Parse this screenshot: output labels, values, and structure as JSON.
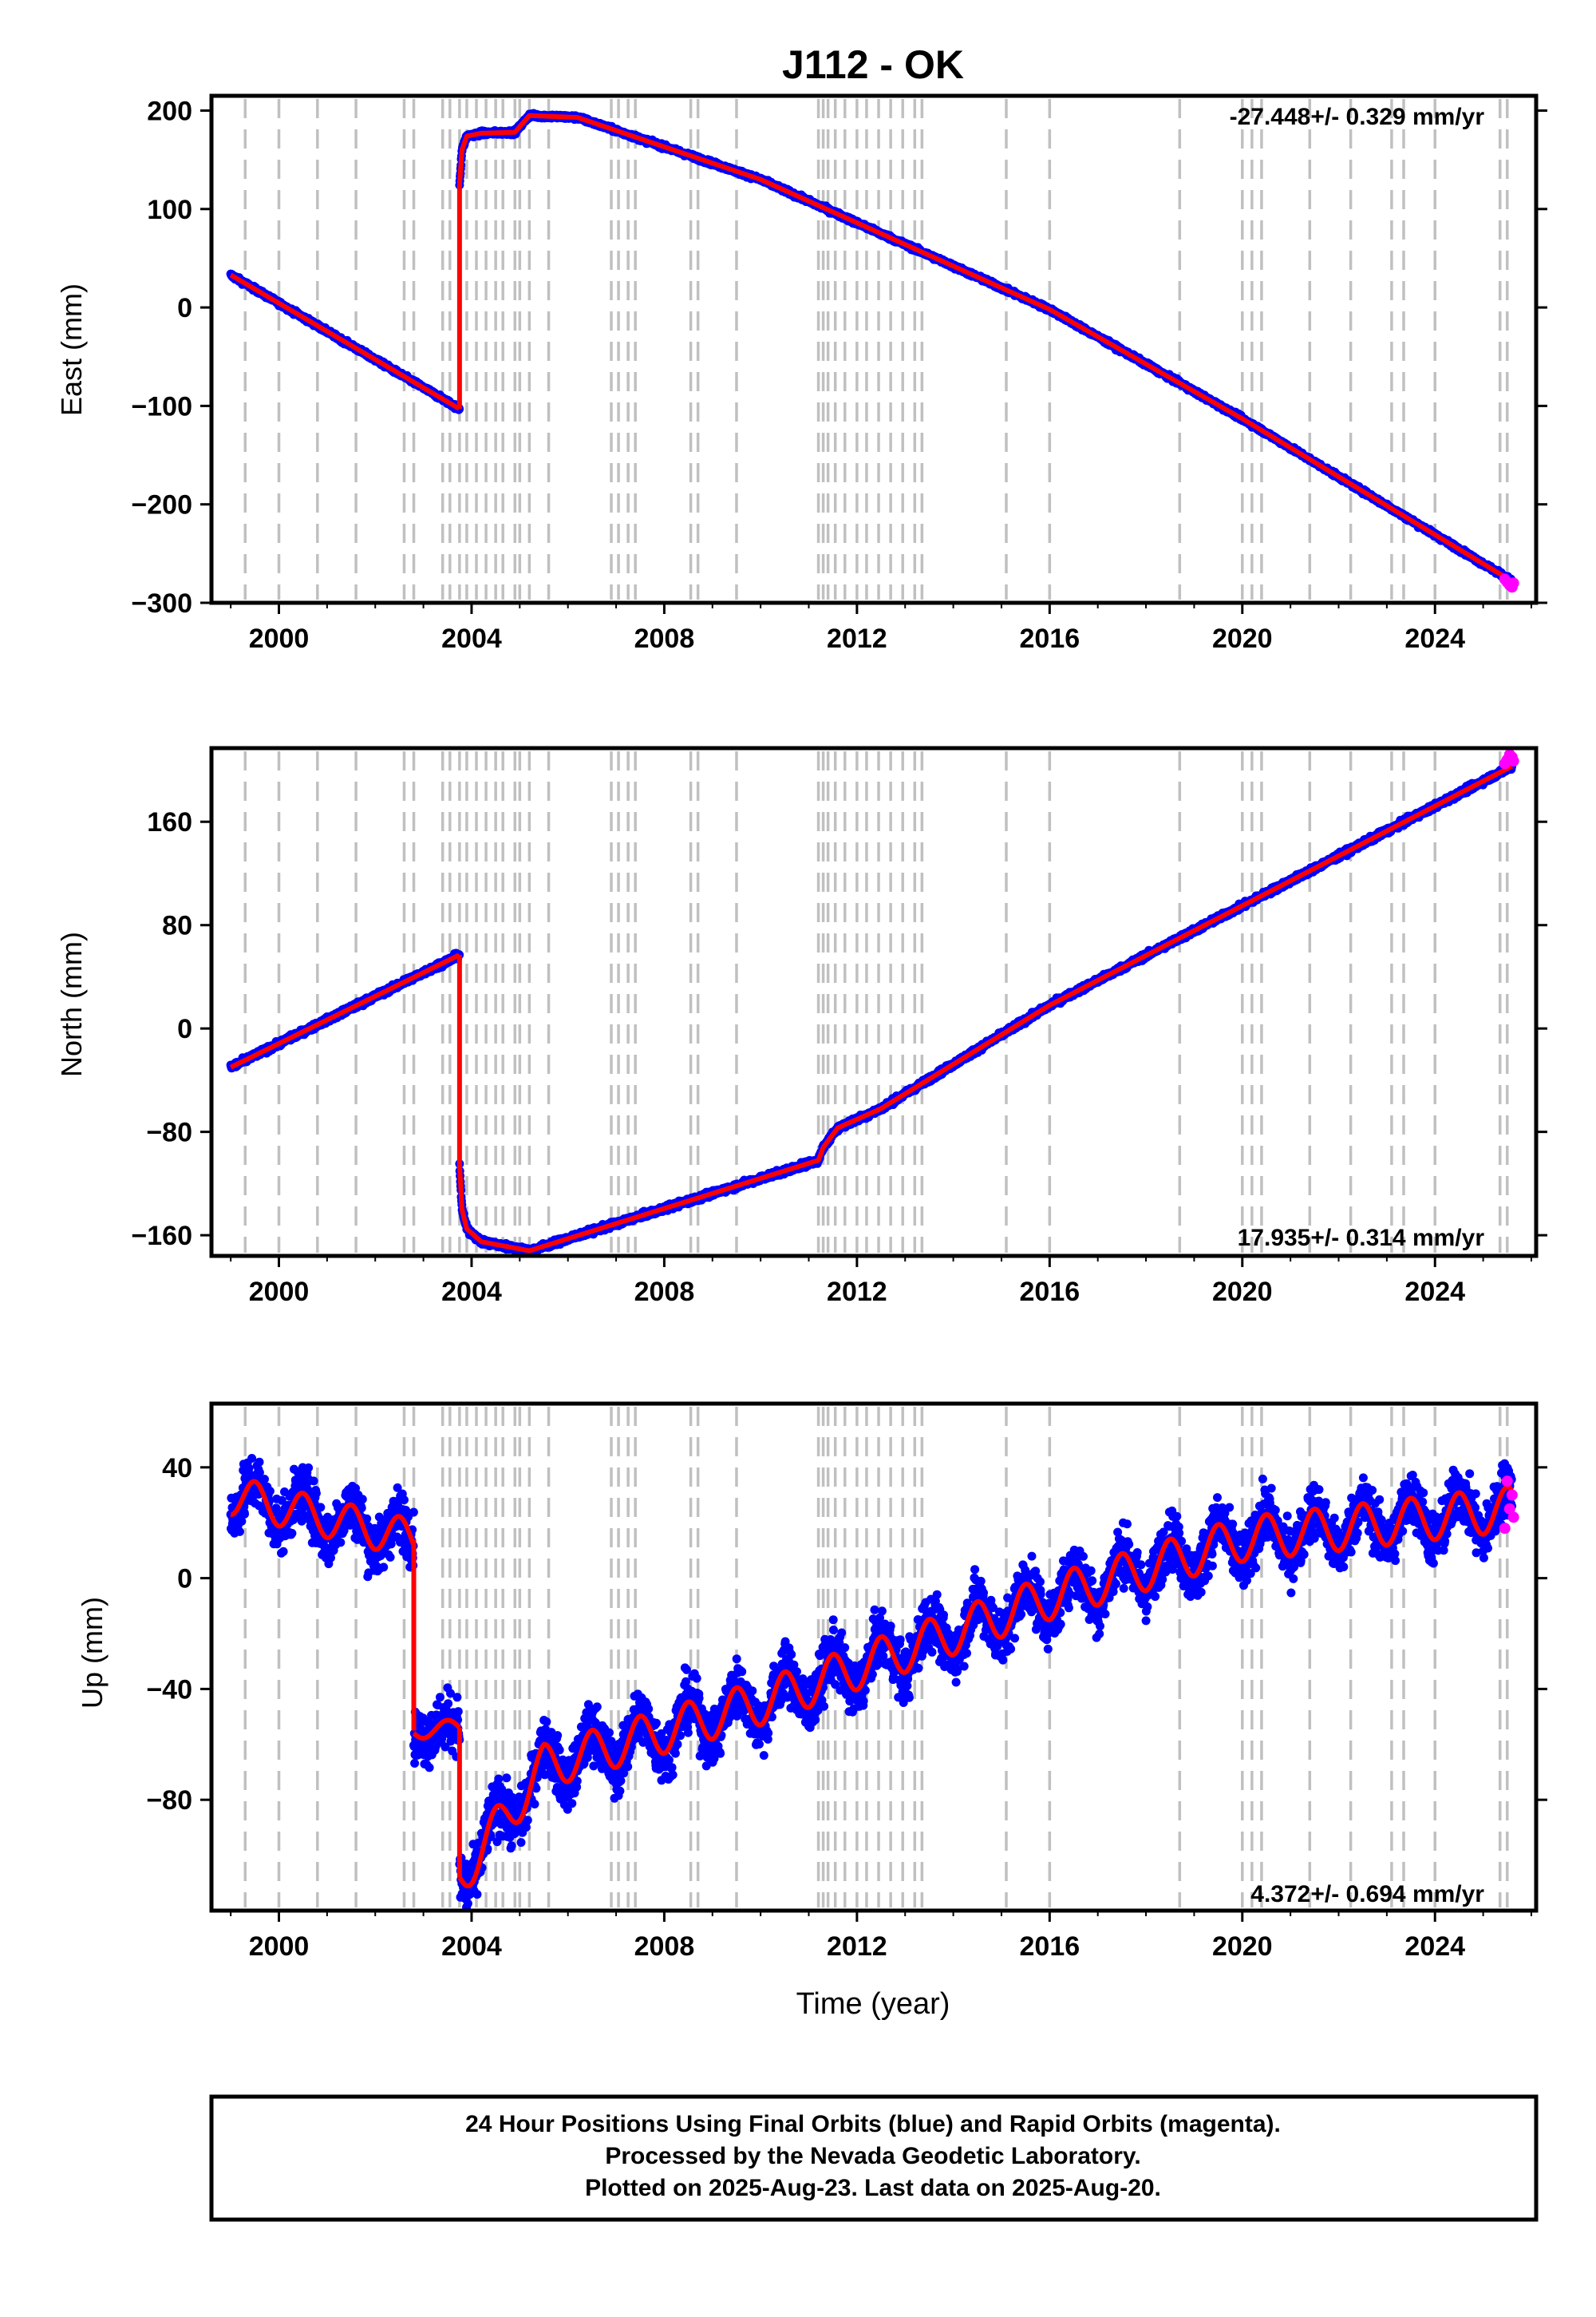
{
  "title": "J112 - OK",
  "footer": {
    "line1": "24 Hour Positions Using Final Orbits (blue) and Rapid Orbits (magenta).",
    "line2": "Processed by the Nevada Geodetic Laboratory.",
    "line3": "Plotted on 2025-Aug-23. Last data on 2025-Aug-20."
  },
  "colors": {
    "final_orbits": "#0000ff",
    "rapid_orbits": "#ff00ff",
    "model_fit": "#ff0000",
    "steps": "#c0c0c0"
  },
  "chart_data": [
    {
      "type": "scatter",
      "ylabel": "East (mm)",
      "xlabel": "",
      "xlim": [
        1998.6,
        2026.1
      ],
      "ylim": [
        -300,
        215
      ],
      "yticks": [
        -300,
        -200,
        -100,
        0,
        100,
        200
      ],
      "ytick_labels": [
        "−300",
        "−200",
        "−100",
        "0",
        "100",
        "200"
      ],
      "xticks": [
        2000,
        2004,
        2008,
        2012,
        2016,
        2020,
        2024
      ],
      "xtick_labels": [
        "2000",
        "2004",
        "2008",
        "2012",
        "2016",
        "2020",
        "2024"
      ],
      "rate_label": "-27.448+/- 0.329 mm/yr",
      "rate_position": "top-right",
      "grid": false,
      "noise": 3,
      "series": [
        {
          "role": "model",
          "x": [
            1999.0,
            2003.75
          ],
          "y": [
            33,
            -103
          ]
        },
        {
          "role": "model",
          "x": [
            2003.75,
            2003.8,
            2003.9,
            2004.2,
            2004.9,
            2005.2,
            2006.2,
            2010.0,
            2016.0,
            2020.0,
            2025.6
          ],
          "y": [
            125,
            160,
            174,
            177,
            178,
            195,
            193,
            130,
            -2,
            -113,
            -278
          ]
        },
        {
          "role": "rapid",
          "x": [
            2025.45,
            2025.5,
            2025.55,
            2025.6,
            2025.63
          ],
          "y": [
            -276,
            -279,
            -282,
            -284,
            -280
          ]
        }
      ]
    },
    {
      "type": "scatter",
      "ylabel": "North (mm)",
      "xlabel": "",
      "xlim": [
        1998.6,
        2026.1
      ],
      "ylim": [
        -176,
        217
      ],
      "yticks": [
        -160,
        -80,
        0,
        80,
        160
      ],
      "ytick_labels": [
        "−160",
        "−80",
        "0",
        "80",
        "160"
      ],
      "xticks": [
        2000,
        2004,
        2008,
        2012,
        2016,
        2020,
        2024
      ],
      "xtick_labels": [
        "2000",
        "2004",
        "2008",
        "2012",
        "2016",
        "2020",
        "2024"
      ],
      "rate_label": "17.935+/- 0.314 mm/yr",
      "rate_position": "bottom-right",
      "grid": false,
      "noise": 3,
      "series": [
        {
          "role": "model",
          "x": [
            1999.0,
            2003.75
          ],
          "y": [
            -30,
            57
          ]
        },
        {
          "role": "model",
          "x": [
            2003.75,
            2003.8,
            2003.9,
            2004.2,
            2005.2,
            2011.2,
            2011.3,
            2011.6,
            2012.5,
            2016.0,
            2020.0,
            2025.6
          ],
          "y": [
            -105,
            -140,
            -155,
            -165,
            -172,
            -102,
            -92,
            -77,
            -62,
            18,
            95,
            203
          ]
        },
        {
          "role": "rapid",
          "x": [
            2025.45,
            2025.5,
            2025.55,
            2025.6,
            2025.63
          ],
          "y": [
            205,
            208,
            212,
            210,
            207
          ]
        }
      ]
    },
    {
      "type": "scatter",
      "ylabel": "Up (mm)",
      "xlabel": "Time (year)",
      "xlim": [
        1998.6,
        2026.1
      ],
      "ylim": [
        -120,
        63
      ],
      "yticks": [
        -80,
        -40,
        0,
        40
      ],
      "ytick_labels": [
        "−80",
        "−40",
        "0",
        "40"
      ],
      "xticks": [
        2000,
        2004,
        2008,
        2012,
        2016,
        2020,
        2024
      ],
      "xtick_labels": [
        "2000",
        "2004",
        "2008",
        "2012",
        "2016",
        "2020",
        "2024"
      ],
      "rate_label": "4.372+/- 0.694 mm/yr",
      "rate_position": "bottom-right",
      "grid": false,
      "noise": 14,
      "series": [
        {
          "role": "model",
          "x": [
            1999.0,
            2002.8
          ],
          "y": [
            30,
            14
          ],
          "seasonal": 7
        },
        {
          "role": "model",
          "x": [
            2002.8,
            2003.75
          ],
          "y": [
            -55,
            -54
          ],
          "seasonal": 3
        },
        {
          "role": "model",
          "x": [
            2003.75,
            2005.5,
            2010.0,
            2016.0,
            2020.0,
            2025.6
          ],
          "y": [
            -108,
            -68,
            -45,
            -7,
            14,
            25
          ],
          "seasonal": 8
        },
        {
          "role": "rapid",
          "x": [
            2025.45,
            2025.5,
            2025.55,
            2025.6,
            2025.63
          ],
          "y": [
            18,
            35,
            25,
            30,
            22
          ]
        }
      ]
    }
  ],
  "step_years": [
    1999.3,
    2000.0,
    2000.8,
    2001.6,
    2002.6,
    2002.8,
    2003.4,
    2003.55,
    2003.75,
    2003.9,
    2004.1,
    2004.3,
    2004.5,
    2004.65,
    2004.9,
    2005.0,
    2005.2,
    2005.6,
    2006.9,
    2007.05,
    2007.25,
    2007.4,
    2008.55,
    2008.7,
    2009.5,
    2011.2,
    2011.3,
    2011.4,
    2011.55,
    2011.75,
    2012.0,
    2012.2,
    2012.45,
    2012.7,
    2012.95,
    2013.2,
    2013.35,
    2015.1,
    2016.0,
    2018.7,
    2020.0,
    2020.2,
    2020.4,
    2021.4,
    2022.25,
    2023.1,
    2023.35,
    2024.0,
    2025.35,
    2025.5
  ]
}
